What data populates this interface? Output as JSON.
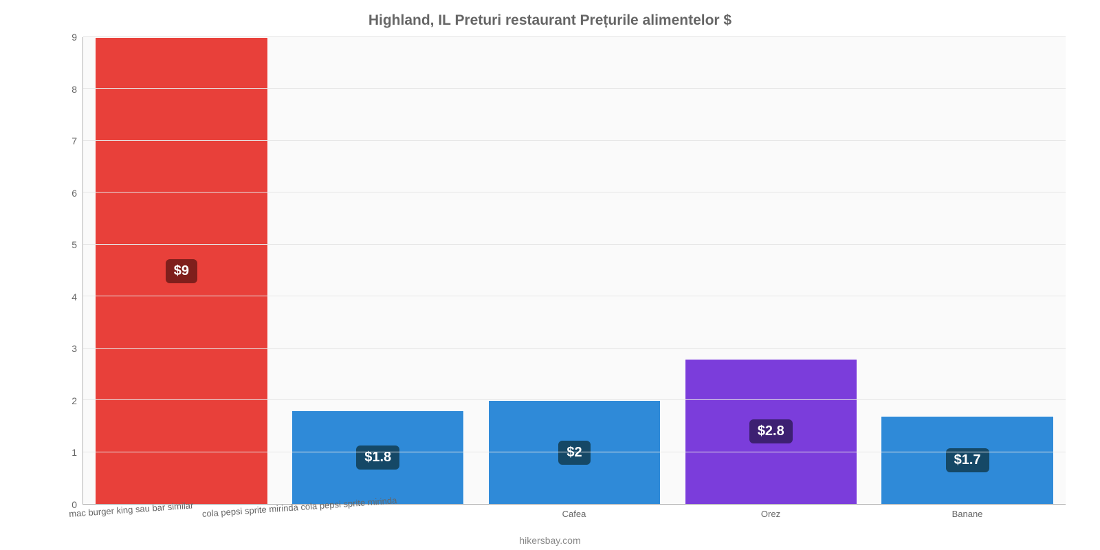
{
  "chart": {
    "type": "bar",
    "title": "Highland, IL Preturi restaurant Prețurile alimentelor $",
    "title_color": "#666666",
    "title_fontsize": 21,
    "background_color": "#fafafa",
    "page_background": "#ffffff",
    "grid_color": "#e6e6e6",
    "axis_line_color": "#b0b0b0",
    "ylim": [
      0,
      9
    ],
    "ytick_step": 1,
    "yticks": [
      "0",
      "1",
      "2",
      "3",
      "4",
      "5",
      "6",
      "7",
      "8",
      "9"
    ],
    "tick_label_color": "#666666",
    "tick_fontsize": 14,
    "x_label_fontsize": 13,
    "x_label_rotation_deg": -4,
    "bar_width_pct": 88,
    "bar_border_color": "#ffffff",
    "badge_text_color": "#ffffff",
    "badge_fontsize": 20,
    "credit": "hikersbay.com",
    "credit_color": "#888888",
    "categories": [
      "mac burger king sau bar similar",
      "cola pepsi sprite mirinda cola pepsi sprite mirinda",
      "Cafea",
      "Orez",
      "Banane"
    ],
    "values": [
      9,
      1.8,
      2,
      2.8,
      1.7
    ],
    "value_labels": [
      "$9",
      "$1.8",
      "$2",
      "$2.8",
      "$1.7"
    ],
    "bar_colors": [
      "#e8403a",
      "#2f8ad8",
      "#2f8ad8",
      "#7b3ddb",
      "#2f8ad8"
    ],
    "badge_colors": [
      "#7f1f1c",
      "#154866",
      "#154866",
      "#3d2072",
      "#154866"
    ],
    "label_rotated": [
      true,
      true,
      false,
      false,
      false
    ]
  }
}
